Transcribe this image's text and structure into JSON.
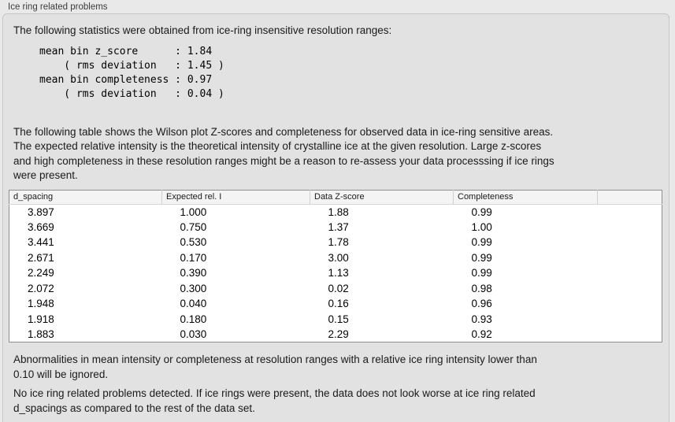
{
  "window": {
    "title": "Ice ring related problems"
  },
  "panel": {
    "intro": "The following statistics were obtained from ice-ring insensitive resolution ranges:",
    "stats_block": "mean bin z_score      : 1.84\n    ( rms deviation   : 1.45 )\nmean bin completeness : 0.97\n    ( rms deviation   : 0.04 )",
    "stats": {
      "mean_bin_z_score": "1.84",
      "z_score_rms_deviation": "1.45",
      "mean_bin_completeness": "0.97",
      "completeness_rms_deviation": "0.04"
    },
    "table_description": "The following table shows the Wilson plot Z-scores and completeness for observed data in ice-ring sensitive areas.\nThe expected relative intensity is the theoretical intensity of crystalline ice at the given resolution. Large z-scores\nand high completeness in these resolution ranges might be a reason to re-assess your data processsing if ice rings\nwere present.",
    "table": {
      "columns": [
        "d_spacing",
        "Expected rel. I",
        "Data Z-score",
        "Completeness"
      ],
      "rows": [
        [
          "3.897",
          "1.000",
          "1.88",
          "0.99"
        ],
        [
          "3.669",
          "0.750",
          "1.37",
          "1.00"
        ],
        [
          "3.441",
          "0.530",
          "1.78",
          "0.99"
        ],
        [
          "2.671",
          "0.170",
          "3.00",
          "0.99"
        ],
        [
          "2.249",
          "0.390",
          "1.13",
          "0.99"
        ],
        [
          "2.072",
          "0.300",
          "0.02",
          "0.98"
        ],
        [
          "1.948",
          "0.040",
          "0.16",
          "0.96"
        ],
        [
          "1.918",
          "0.180",
          "0.15",
          "0.93"
        ],
        [
          "1.883",
          "0.030",
          "2.29",
          "0.92"
        ]
      ]
    },
    "note_ignore": "Abnormalities in mean intensity or completeness at resolution ranges with a relative ice ring intensity lower than\n0.10 will be ignored.",
    "conclusion": "No ice ring related problems detected. If ice rings were present, the data does not look worse at ice ring related\nd_spacings as compared to the rest of the data set."
  },
  "colors": {
    "window_background": "#e9e9e9",
    "panel_background": "#e2e2e2",
    "panel_border": "#c6c6c6",
    "table_border": "#8f8f8f",
    "table_header_background": "#f4f4f4",
    "table_body_background": "#ffffff",
    "text": "#1a1a1a"
  }
}
